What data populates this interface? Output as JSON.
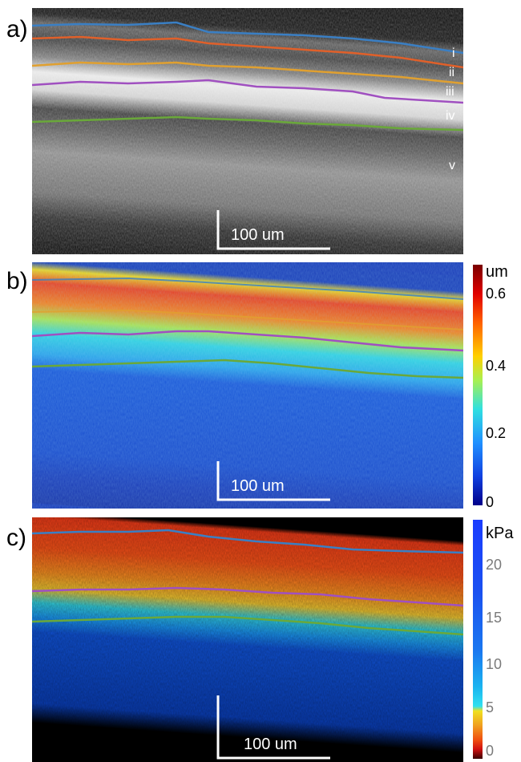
{
  "panels": {
    "a": {
      "label": "a)",
      "scalebar": "100 um",
      "layers": [
        "i",
        "ii",
        "iii",
        "iv",
        "v"
      ]
    },
    "b": {
      "label": "b)",
      "scalebar": "100 um",
      "colorbar": {
        "unit": "um",
        "ticks": [
          "0.6",
          "0.4",
          "0.2",
          "0"
        ]
      }
    },
    "c": {
      "label": "c)",
      "scalebar": "100 um",
      "colorbar": {
        "unit": "kPa",
        "ticks": [
          "20",
          "15",
          "10",
          "5",
          "0"
        ]
      }
    }
  },
  "colors": {
    "boundary_1": "#3a7fc4",
    "boundary_2": "#e0602a",
    "boundary_3": "#e0a030",
    "boundary_4": "#a050c0",
    "boundary_5": "#6aa83a"
  }
}
